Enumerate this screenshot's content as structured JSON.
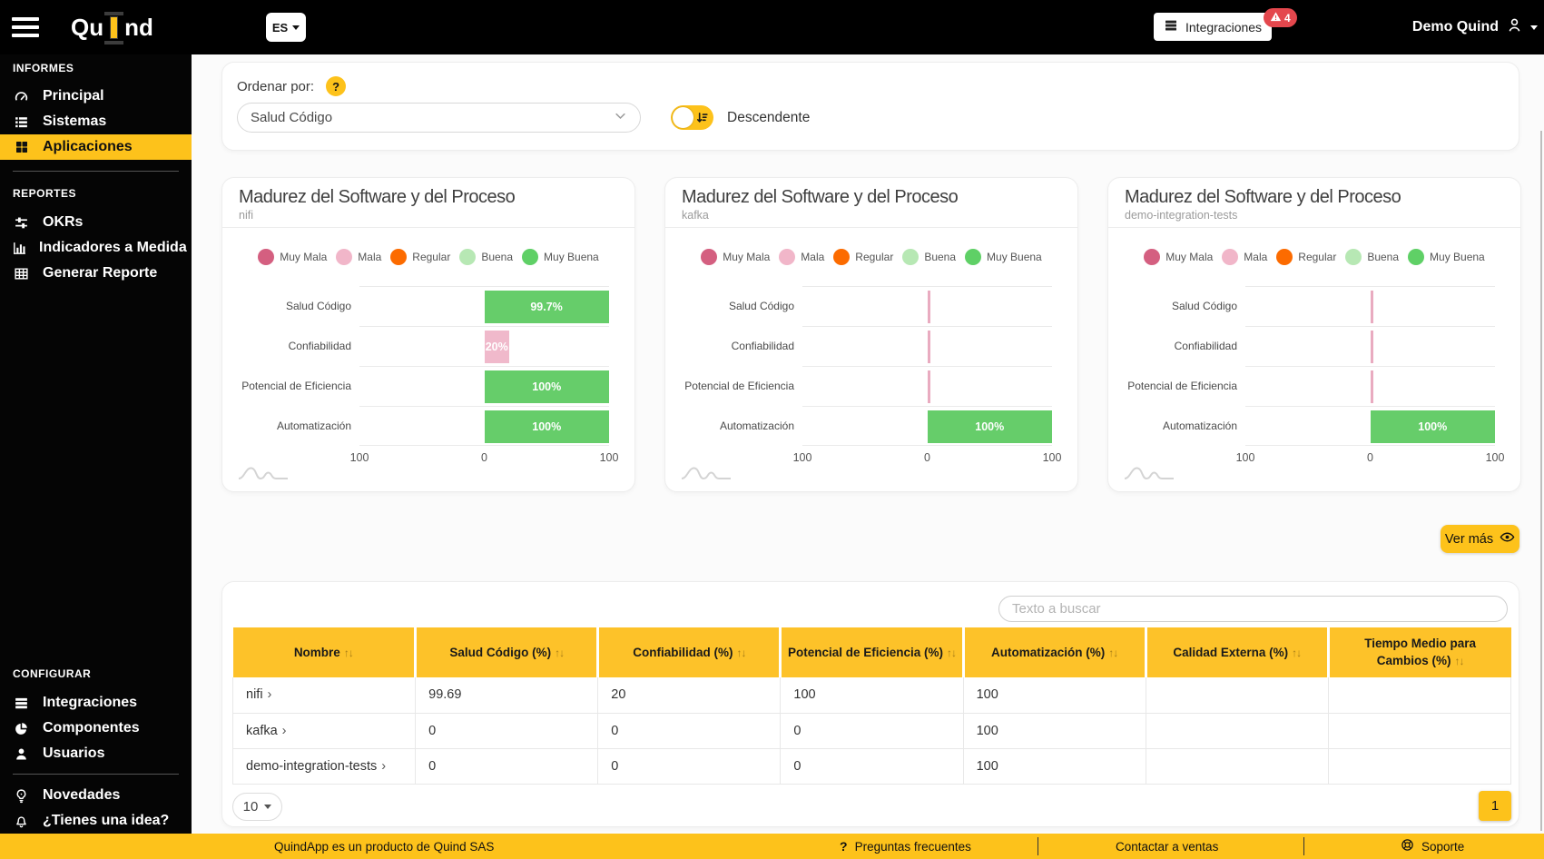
{
  "topbar": {
    "logo_prefix": "Qu",
    "logo_suffix": "nd",
    "language": "ES",
    "integrations_label": "Integraciones",
    "integrations_badge": "4",
    "user_name": "Demo Quind"
  },
  "sidebar": {
    "sections": [
      {
        "header": "INFORMES",
        "divider_after": true,
        "items": [
          {
            "label": "Principal",
            "icon": "gauge",
            "active": false
          },
          {
            "label": "Sistemas",
            "icon": "list",
            "active": false
          },
          {
            "label": "Aplicaciones",
            "icon": "grid",
            "active": true
          }
        ]
      },
      {
        "header": "REPORTES",
        "divider_after": false,
        "items": [
          {
            "label": "OKRs",
            "icon": "sliders",
            "active": false
          },
          {
            "label": "Indicadores a Medida",
            "icon": "bars",
            "active": false
          },
          {
            "label": "Generar Reporte",
            "icon": "tablegrid",
            "active": false
          }
        ]
      },
      {
        "header": "CONFIGURAR",
        "spacer_before": true,
        "divider_after": true,
        "items": [
          {
            "label": "Integraciones",
            "icon": "server",
            "active": false
          },
          {
            "label": "Componentes",
            "icon": "pie",
            "active": false
          },
          {
            "label": "Usuarios",
            "icon": "user",
            "active": false
          }
        ]
      },
      {
        "header": null,
        "divider_after": false,
        "items": [
          {
            "label": "Novedades",
            "icon": "bulb",
            "active": false
          },
          {
            "label": "¿Tienes una idea?",
            "icon": "bell",
            "active": false
          }
        ]
      }
    ]
  },
  "sort_panel": {
    "label": "Ordenar por:",
    "selected_option": "Salud Código",
    "toggle_label": "Descendente"
  },
  "chart_data": [
    {
      "type": "bar",
      "title": "Madurez del Software y del Proceso",
      "subtitle": "nifi",
      "categories": [
        "Salud Código",
        "Confiabilidad",
        "Potencial de Eficiencia",
        "Automatización"
      ],
      "values": [
        99.7,
        20,
        100,
        100
      ],
      "value_labels": [
        "99.7%",
        "20%",
        "100%",
        "100%"
      ],
      "bar_colors": [
        "#66cd6a",
        "#f0b9cb",
        "#66cd6a",
        "#66cd6a"
      ],
      "xlim": [
        -100,
        100
      ],
      "xticks": [
        "100",
        "0",
        "100"
      ],
      "legend": [
        {
          "label": "Muy Mala",
          "color": "#d45f80"
        },
        {
          "label": "Mala",
          "color": "#f1b6c9"
        },
        {
          "label": "Regular",
          "color": "#fc6b00"
        },
        {
          "label": "Buena",
          "color": "#b7e8b4"
        },
        {
          "label": "Muy Buena",
          "color": "#5fd066"
        }
      ]
    },
    {
      "type": "bar",
      "title": "Madurez del Software y del Proceso",
      "subtitle": "kafka",
      "categories": [
        "Salud Código",
        "Confiabilidad",
        "Potencial de Eficiencia",
        "Automatización"
      ],
      "values": [
        0,
        0,
        0,
        100
      ],
      "value_labels": [
        "",
        "",
        "",
        "100%"
      ],
      "bar_colors": [
        "#e9abc0",
        "#e9abc0",
        "#e9abc0",
        "#66cd6a"
      ],
      "xlim": [
        -100,
        100
      ],
      "xticks": [
        "100",
        "0",
        "100"
      ],
      "legend": [
        {
          "label": "Muy Mala",
          "color": "#d45f80"
        },
        {
          "label": "Mala",
          "color": "#f1b6c9"
        },
        {
          "label": "Regular",
          "color": "#fc6b00"
        },
        {
          "label": "Buena",
          "color": "#b7e8b4"
        },
        {
          "label": "Muy Buena",
          "color": "#5fd066"
        }
      ]
    },
    {
      "type": "bar",
      "title": "Madurez del Software y del Proceso",
      "subtitle": "demo-integration-tests",
      "categories": [
        "Salud Código",
        "Confiabilidad",
        "Potencial de Eficiencia",
        "Automatización"
      ],
      "values": [
        0,
        0,
        0,
        100
      ],
      "value_labels": [
        "",
        "",
        "",
        "100%"
      ],
      "bar_colors": [
        "#e9abc0",
        "#e9abc0",
        "#e9abc0",
        "#66cd6a"
      ],
      "xlim": [
        -100,
        100
      ],
      "xticks": [
        "100",
        "0",
        "100"
      ],
      "legend": [
        {
          "label": "Muy Mala",
          "color": "#d45f80"
        },
        {
          "label": "Mala",
          "color": "#f1b6c9"
        },
        {
          "label": "Regular",
          "color": "#fc6b00"
        },
        {
          "label": "Buena",
          "color": "#b7e8b4"
        },
        {
          "label": "Muy Buena",
          "color": "#5fd066"
        }
      ]
    }
  ],
  "ver_mas_label": "Ver más",
  "table": {
    "search_placeholder": "Texto a buscar",
    "columns": [
      "Nombre",
      "Salud Código (%)",
      "Confiabilidad (%)",
      "Potencial de Eficiencia (%)",
      "Automatización (%)",
      "Calidad Externa (%)",
      "Tiempo Medio para Cambios (%)"
    ],
    "rows": [
      {
        "name": "nifi",
        "values": [
          "99.69",
          "20",
          "100",
          "100",
          "",
          ""
        ]
      },
      {
        "name": "kafka",
        "values": [
          "0",
          "0",
          "0",
          "100",
          "",
          ""
        ]
      },
      {
        "name": "demo-integration-tests",
        "values": [
          "0",
          "0",
          "0",
          "100",
          "",
          ""
        ]
      }
    ]
  },
  "pagination": {
    "page_size": "10",
    "current_page": "1"
  },
  "footer": {
    "product_note": "QuindApp es un producto de Quind SAS",
    "faq_q": "?",
    "faq": "Preguntas frecuentes",
    "contact": "Contactar a ventas",
    "support": "Soporte"
  }
}
